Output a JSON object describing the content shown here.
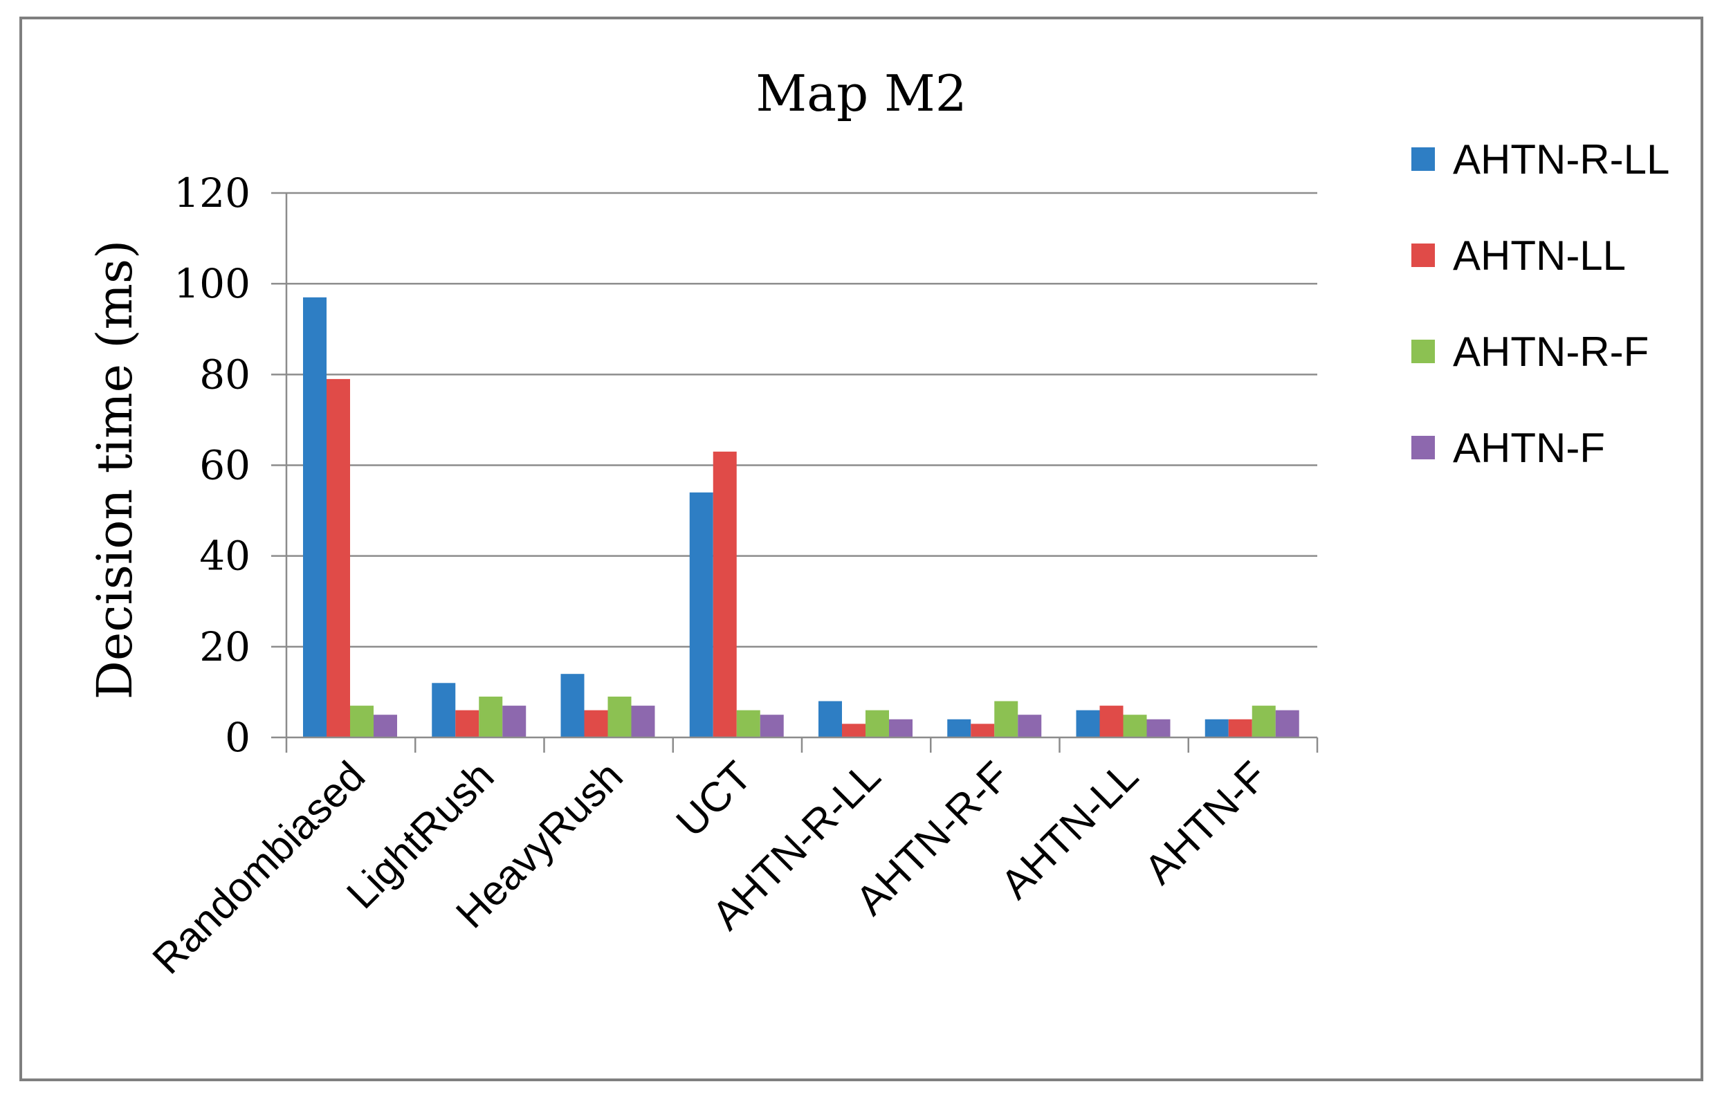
{
  "chart_data": {
    "type": "bar",
    "title": "Map M2",
    "xlabel": "",
    "ylabel": "Decision time (ms)",
    "ylim": [
      0,
      120
    ],
    "yticks": [
      "0",
      "20",
      "40",
      "60",
      "80",
      "100",
      "120"
    ],
    "grid": true,
    "legend_position": "right",
    "categories": [
      "Randombiased",
      "LightRush",
      "HeavyRush",
      "UCT",
      "AHTN-R-LL",
      "AHTN-R-F",
      "AHTN-LL",
      "AHTN-F"
    ],
    "series": [
      {
        "name": "AHTN-R-LL",
        "color": "#2e7ec4",
        "values": [
          97,
          12,
          14,
          54,
          8,
          4,
          6,
          4
        ]
      },
      {
        "name": "AHTN-LL",
        "color": "#e04b48",
        "values": [
          79,
          6,
          6,
          63,
          3,
          3,
          7,
          4
        ]
      },
      {
        "name": "AHTN-R-F",
        "color": "#8cc152",
        "values": [
          7,
          9,
          9,
          6,
          6,
          8,
          5,
          7
        ]
      },
      {
        "name": "AHTN-F",
        "color": "#8d68ae",
        "values": [
          5,
          7,
          7,
          5,
          4,
          5,
          4,
          6
        ]
      }
    ]
  }
}
